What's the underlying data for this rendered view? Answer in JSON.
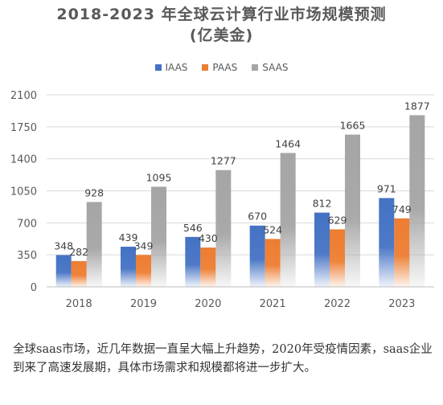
{
  "title_line1": "2018-2023 年全球云计算行业市场规模预测",
  "title_line2": "(亿美金)",
  "chart_data": {
    "type": "bar",
    "title": "2018-2023 年全球云计算行业市场规模预测(亿美金)",
    "categories": [
      "2018",
      "2019",
      "2020",
      "2021",
      "2022",
      "2023"
    ],
    "series": [
      {
        "name": "IAAS",
        "values": [
          348,
          439,
          546,
          670,
          812,
          971
        ],
        "color": "#4472C4"
      },
      {
        "name": "PAAS",
        "values": [
          282,
          349,
          430,
          524,
          629,
          749
        ],
        "color": "#ED7D31"
      },
      {
        "name": "SAAS",
        "values": [
          928,
          1095,
          1277,
          1464,
          1665,
          1877
        ],
        "color": "#A5A5A5"
      }
    ],
    "ylim": [
      0,
      2100
    ],
    "yticks": [
      "0",
      "350",
      "700",
      "1050",
      "1400",
      "1750",
      "2100"
    ],
    "grid": true,
    "legend_position": "top"
  },
  "caption": "全球saas市场，近几年数据一直呈大幅上升趋势，2020年受疫情因素，saas企业到来了高速发展期，具体市场需求和规模都将进一步扩大。"
}
